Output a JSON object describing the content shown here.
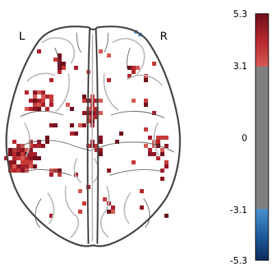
{
  "hemisphere_labels": {
    "left": "L",
    "right": "R"
  },
  "colorbar": {
    "vmin": -5.3,
    "vmax": 5.3,
    "threshold": 3.1,
    "tick_labels": [
      "5.3",
      "3.1",
      "0",
      "-3.1",
      "-5.3"
    ],
    "tick_values": [
      5.3,
      3.1,
      0,
      -3.1,
      -5.3
    ],
    "colormap": "cold_hot",
    "colors": {
      "max": "#6f0f1c",
      "pos_threshold": "#d55a54",
      "masked": "#808080",
      "neg_threshold": "#4a90cc",
      "min": "#0a2a5c"
    }
  },
  "view": "axial"
}
